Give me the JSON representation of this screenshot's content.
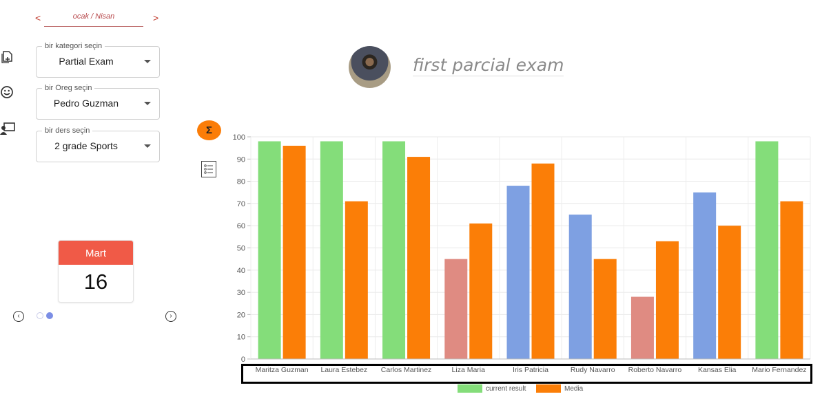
{
  "nav": {
    "month_label": "ocak / Nisan",
    "prev_glyph": "<",
    "next_glyph": ">"
  },
  "filters": {
    "category": {
      "legend": "bir kategori seçin",
      "value": "Partial Exam"
    },
    "student": {
      "legend": "bir Oreg seçin",
      "value": "Pedro Guzman"
    },
    "course": {
      "legend": "bir ders seçin",
      "value": "2 grade Sports"
    }
  },
  "rail_icons": [
    "add-document-icon",
    "smiley-icon",
    "teacher-board-icon"
  ],
  "calendar": {
    "month": "Mart",
    "day": "16"
  },
  "carousel": {
    "prev_glyph": "‹",
    "next_glyph": "›"
  },
  "header": {
    "title": "first parcial exam"
  },
  "tools": {
    "sigma_label": "Σ"
  },
  "colors": {
    "green": "#84dd7a",
    "orange": "#fb7e07",
    "blue": "#7ea0e2",
    "red": "#df8b82",
    "accent_red": "#f05a47",
    "dot_active": "#7b8ee5"
  },
  "chart_data": {
    "type": "bar",
    "categories": [
      "Maritza Guzman",
      "Laura Estebez",
      "Carlos Martinez",
      "Liza Maria",
      "Iris Patricia",
      "Rudy Navarro",
      "Roberto Navarro",
      "Kansas Elia",
      "Mario Fernandez"
    ],
    "series": [
      {
        "name": "current result",
        "values": [
          98,
          98,
          98,
          45,
          78,
          65,
          28,
          75,
          98
        ],
        "colors": [
          "#84dd7a",
          "#84dd7a",
          "#84dd7a",
          "#df8b82",
          "#7ea0e2",
          "#7ea0e2",
          "#df8b82",
          "#7ea0e2",
          "#84dd7a"
        ]
      },
      {
        "name": "Media",
        "values": [
          96,
          71,
          91,
          61,
          88,
          45,
          53,
          60,
          71
        ],
        "colors": [
          "#fb7e07",
          "#fb7e07",
          "#fb7e07",
          "#fb7e07",
          "#fb7e07",
          "#fb7e07",
          "#fb7e07",
          "#fb7e07",
          "#fb7e07"
        ]
      }
    ],
    "ylim": [
      0,
      100
    ],
    "yticks": [
      0,
      10,
      20,
      30,
      40,
      50,
      60,
      70,
      80,
      90,
      100
    ],
    "grid": true,
    "legend_position": "bottom"
  }
}
